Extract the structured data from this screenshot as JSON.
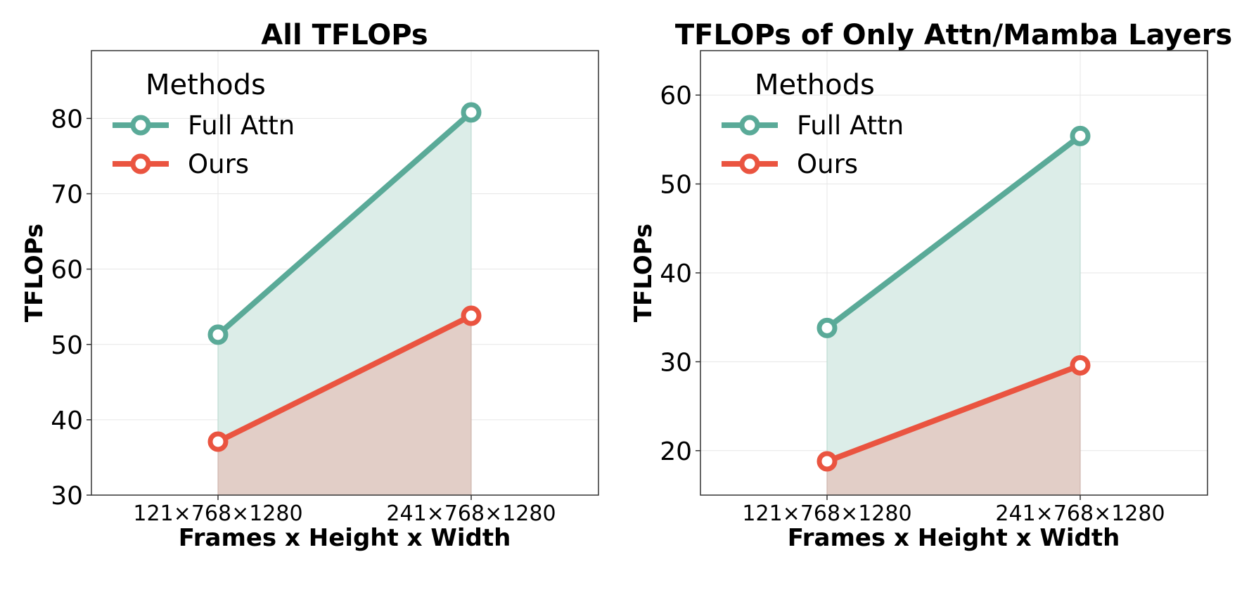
{
  "colors": {
    "full_attn": "#5aaa98",
    "ours": "#ea5440",
    "full_attn_fill": "#dcede8",
    "ours_fill": "#e2cec7"
  },
  "chart_data": [
    {
      "type": "line",
      "title": "All TFLOPs",
      "xlabel": "Frames x Height x Width",
      "ylabel": "TFLOPs",
      "categories": [
        "121×768×1280",
        "241×768×1280"
      ],
      "ylim": [
        30,
        89
      ],
      "yticks": [
        30,
        40,
        50,
        60,
        70,
        80
      ],
      "legend": {
        "title": "Methods",
        "position": "top-left"
      },
      "grid": true,
      "series": [
        {
          "name": "Full Attn",
          "values": [
            51.3,
            80.8
          ]
        },
        {
          "name": "Ours",
          "values": [
            37.1,
            53.8
          ]
        }
      ]
    },
    {
      "type": "line",
      "title": "TFLOPs of Only Attn/Mamba Layers",
      "xlabel": "Frames x Height x Width",
      "ylabel": "TFLOPs",
      "categories": [
        "121×768×1280",
        "241×768×1280"
      ],
      "ylim": [
        15,
        65
      ],
      "yticks": [
        20,
        30,
        40,
        50,
        60
      ],
      "legend": {
        "title": "Methods",
        "position": "top-left"
      },
      "grid": true,
      "series": [
        {
          "name": "Full Attn",
          "values": [
            33.8,
            55.4
          ]
        },
        {
          "name": "Ours",
          "values": [
            18.8,
            29.6
          ]
        }
      ]
    }
  ]
}
